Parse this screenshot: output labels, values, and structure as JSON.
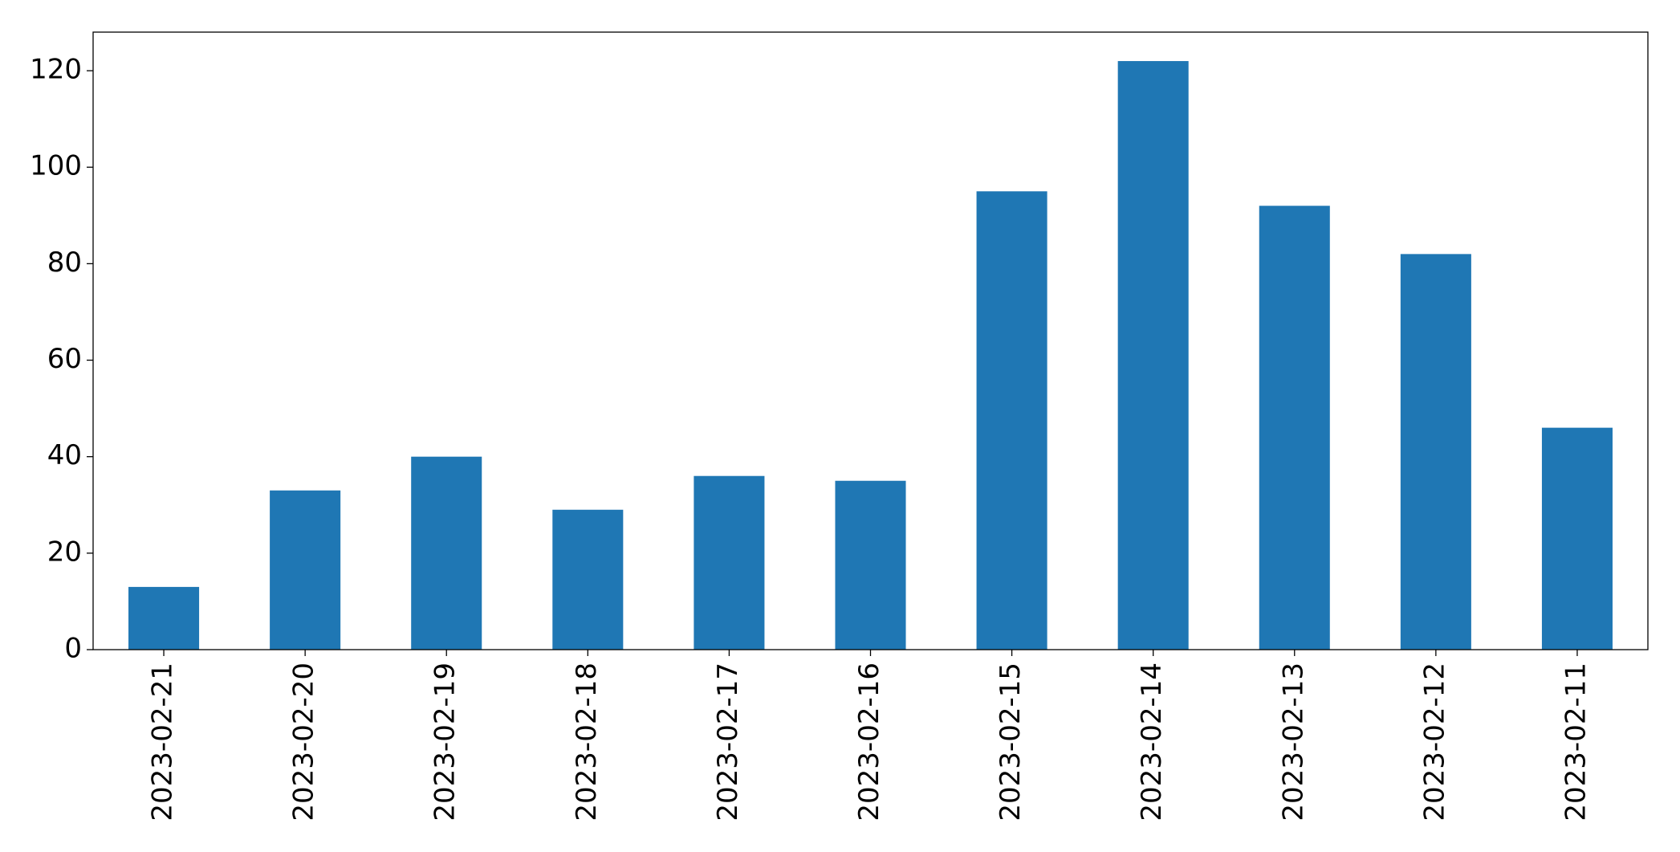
{
  "chart_data": {
    "type": "bar",
    "categories": [
      "2023-02-21",
      "2023-02-20",
      "2023-02-19",
      "2023-02-18",
      "2023-02-17",
      "2023-02-16",
      "2023-02-15",
      "2023-02-14",
      "2023-02-13",
      "2023-02-12",
      "2023-02-11"
    ],
    "values": [
      13,
      33,
      40,
      29,
      36,
      35,
      95,
      122,
      92,
      82,
      46
    ],
    "color": "#1f77b4",
    "ylim": [
      0,
      128
    ],
    "yticks": [
      0,
      20,
      40,
      60,
      80,
      100,
      120
    ],
    "grid": false
  }
}
